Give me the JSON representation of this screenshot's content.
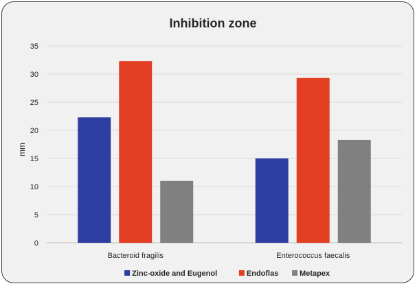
{
  "chart_data": {
    "type": "bar",
    "title": "Inhibition zone",
    "xlabel": "",
    "ylabel": "mm",
    "ylim": [
      0,
      35
    ],
    "yticks": [
      0,
      5,
      10,
      15,
      20,
      25,
      30,
      35
    ],
    "categories": [
      "Bacteroid fragilis",
      "Enterococcus faecalis"
    ],
    "series": [
      {
        "name": "Zinc-oxide and Eugenol",
        "color": "#2e3ea0",
        "values": [
          22.3,
          15.0
        ]
      },
      {
        "name": "Endoflas",
        "color": "#e33f22",
        "values": [
          32.3,
          29.3
        ]
      },
      {
        "name": "Metapex",
        "color": "#808080",
        "values": [
          11.0,
          18.3
        ]
      }
    ],
    "grid": true,
    "legend_position": "bottom"
  }
}
